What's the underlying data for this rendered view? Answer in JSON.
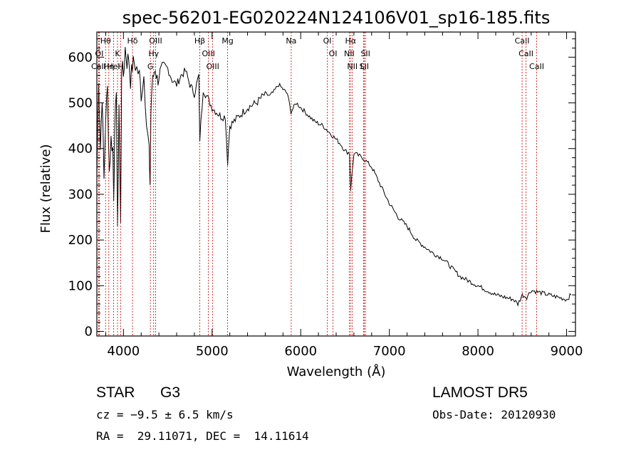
{
  "chart_data": {
    "type": "line",
    "title": "spec-56201-EG020224N124106V01_sp16-185.fits",
    "xlabel": "Wavelength (Å)",
    "ylabel": "Flux (relative)",
    "xlim": [
      3700,
      9100
    ],
    "ylim": [
      -10,
      655
    ],
    "xticks": [
      4000,
      5000,
      6000,
      7000,
      8000,
      9000
    ],
    "yticks": [
      0,
      100,
      200,
      300,
      400,
      500,
      600
    ],
    "grid": false,
    "line_color": "#000000",
    "marker_color": "#cc0000",
    "series": [
      {
        "x": [
          3700,
          3720,
          3740,
          3760,
          3780,
          3800,
          3820,
          3840,
          3860,
          3880,
          3890,
          3900,
          3920,
          3933,
          3950,
          3968,
          3980,
          4000,
          4020,
          4040,
          4060,
          4080,
          4102,
          4120,
          4150,
          4180,
          4200,
          4230,
          4260,
          4290,
          4300,
          4310,
          4320,
          4340,
          4360,
          4380,
          4400,
          4450,
          4500,
          4550,
          4600,
          4650,
          4700,
          4750,
          4800,
          4850,
          4861,
          4900,
          4950,
          5000,
          5050,
          5100,
          5150,
          5175,
          5200,
          5250,
          5300,
          5350,
          5400,
          5450,
          5500,
          5550,
          5600,
          5650,
          5700,
          5750,
          5800,
          5850,
          5890,
          5950,
          6000,
          6050,
          6100,
          6150,
          6200,
          6250,
          6300,
          6350,
          6400,
          6450,
          6500,
          6550,
          6563,
          6600,
          6650,
          6700,
          6750,
          6800,
          6850,
          6900,
          6950,
          7000,
          7100,
          7200,
          7300,
          7400,
          7500,
          7600,
          7700,
          7750,
          7800,
          7850,
          7900,
          8000,
          8100,
          8200,
          8300,
          8400,
          8450,
          8500,
          8550,
          8600,
          8700,
          8800,
          8900,
          9000,
          9050
        ],
        "y": [
          340,
          560,
          400,
          520,
          330,
          470,
          530,
          350,
          420,
          400,
          300,
          410,
          540,
          210,
          500,
          230,
          580,
          560,
          620,
          590,
          600,
          550,
          580,
          590,
          575,
          560,
          520,
          560,
          470,
          400,
          300,
          480,
          530,
          560,
          580,
          550,
          560,
          570,
          575,
          550,
          540,
          560,
          570,
          540,
          520,
          560,
          420,
          530,
          510,
          490,
          480,
          470,
          470,
          370,
          450,
          460,
          470,
          480,
          490,
          495,
          500,
          510,
          520,
          515,
          525,
          540,
          530,
          520,
          480,
          500,
          490,
          480,
          470,
          460,
          455,
          450,
          440,
          430,
          420,
          410,
          395,
          390,
          310,
          390,
          385,
          380,
          370,
          360,
          340,
          320,
          300,
          280,
          250,
          230,
          200,
          185,
          170,
          160,
          140,
          130,
          120,
          115,
          110,
          100,
          90,
          80,
          75,
          70,
          60,
          80,
          75,
          90,
          85,
          80,
          75,
          70,
          80
        ]
      }
    ],
    "lines": [
      {
        "label": "Hθ",
        "x": 3798
      },
      {
        "label": "OI",
        "x": 3727
      },
      {
        "label": "CaII",
        "x": 3720
      },
      {
        "label": "Hη",
        "x": 3835
      },
      {
        "label": "HeI",
        "x": 3889
      },
      {
        "label": "K",
        "x": 3933
      },
      {
        "label": "H",
        "x": 3968
      },
      {
        "label": "Hδ",
        "x": 4102
      },
      {
        "label": "OIII",
        "x": 4363
      },
      {
        "label": "Hγ",
        "x": 4341
      },
      {
        "label": "G",
        "x": 4304
      },
      {
        "label": "Hβ",
        "x": 4861
      },
      {
        "label": "OIII",
        "x": 4959
      },
      {
        "label": "OIII",
        "x": 5007
      },
      {
        "label": "Mg",
        "x": 5175
      },
      {
        "label": "Na",
        "x": 5893
      },
      {
        "label": "OI",
        "x": 6300
      },
      {
        "label": "OI",
        "x": 6364
      },
      {
        "label": "Hα",
        "x": 6563
      },
      {
        "label": "NII",
        "x": 6548
      },
      {
        "label": "NII",
        "x": 6583
      },
      {
        "label": "SII",
        "x": 6716
      },
      {
        "label": "Li",
        "x": 6708
      },
      {
        "label": "SII",
        "x": 6731
      },
      {
        "label": "CaII",
        "x": 8498
      },
      {
        "label": "CaII",
        "x": 8542
      },
      {
        "label": "CaII",
        "x": 8662
      }
    ]
  },
  "info": {
    "object_class": "STAR",
    "subclass": "G3",
    "survey": "LAMOST DR5",
    "redshift_line": "cz = −9.5 ± 6.5 km/s",
    "obs_date": "Obs-Date: 20120930",
    "coords": "RA =  29.11071, DEC =  14.11614"
  }
}
